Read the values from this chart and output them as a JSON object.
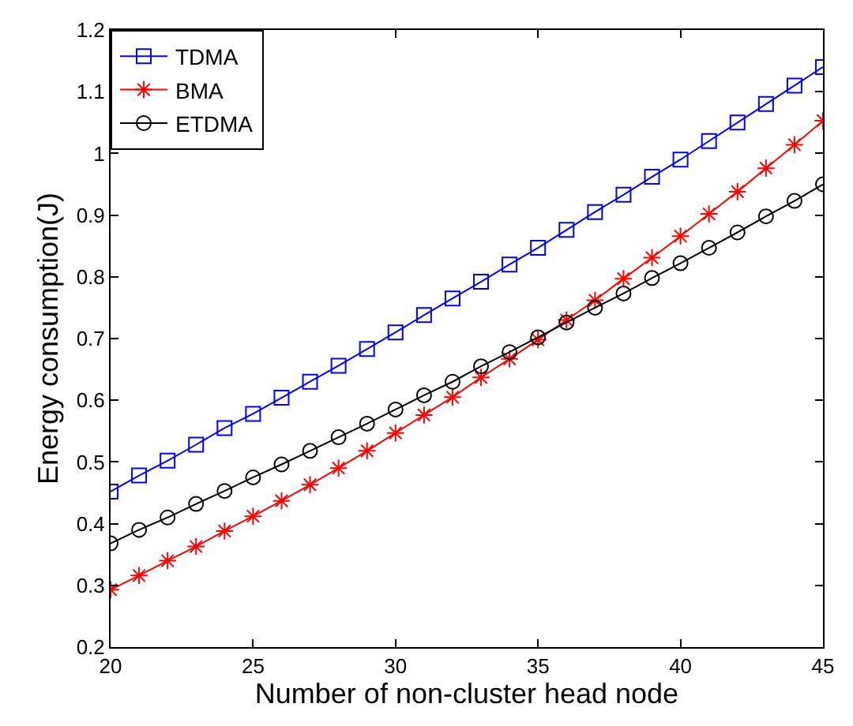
{
  "chart_data": {
    "type": "line",
    "xlabel": "Number of non-cluster head node",
    "ylabel": "Energy consumption(J)",
    "x": [
      20,
      21,
      22,
      23,
      24,
      25,
      26,
      27,
      28,
      29,
      30,
      31,
      32,
      33,
      34,
      35,
      36,
      37,
      38,
      39,
      40,
      41,
      42,
      43,
      44,
      45
    ],
    "series": [
      {
        "name": "TDMA",
        "color": "#0000ff",
        "marker": "square",
        "values": [
          0.452,
          0.478,
          0.502,
          0.528,
          0.555,
          0.578,
          0.604,
          0.63,
          0.656,
          0.683,
          0.71,
          0.738,
          0.765,
          0.792,
          0.82,
          0.847,
          0.876,
          0.905,
          0.933,
          0.962,
          0.99,
          1.02,
          1.05,
          1.08,
          1.11,
          1.14
        ]
      },
      {
        "name": "BMA",
        "color": "#ff0000",
        "marker": "cross",
        "values": [
          0.293,
          0.316,
          0.34,
          0.363,
          0.388,
          0.412,
          0.437,
          0.463,
          0.49,
          0.518,
          0.547,
          0.576,
          0.605,
          0.637,
          0.667,
          0.698,
          0.73,
          0.762,
          0.797,
          0.831,
          0.866,
          0.902,
          0.938,
          0.976,
          1.014,
          1.053
        ]
      },
      {
        "name": "ETDMA",
        "color": "#000000",
        "marker": "circle",
        "values": [
          0.368,
          0.39,
          0.41,
          0.432,
          0.453,
          0.475,
          0.496,
          0.518,
          0.54,
          0.562,
          0.585,
          0.608,
          0.63,
          0.655,
          0.678,
          0.702,
          0.726,
          0.75,
          0.773,
          0.798,
          0.822,
          0.847,
          0.872,
          0.898,
          0.923,
          0.95
        ]
      }
    ],
    "xlim": [
      20,
      45
    ],
    "xticks": [
      20,
      25,
      30,
      35,
      40,
      45
    ],
    "ylim": [
      0.2,
      1.2
    ],
    "yticks": [
      0.2,
      0.3,
      0.4,
      0.5,
      0.6,
      0.7,
      0.8,
      0.9,
      1,
      1.1,
      1.2
    ],
    "grid": false,
    "legend": "top left",
    "line_style": "solid"
  }
}
